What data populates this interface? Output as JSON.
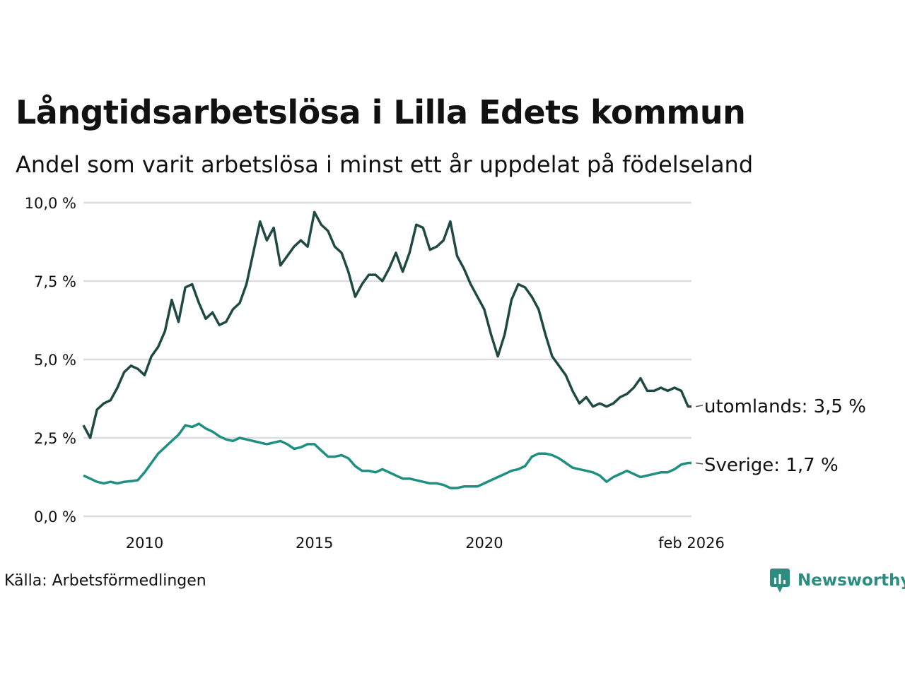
{
  "title": "Långtidsarbetslösa i Lilla Edets kommun",
  "subtitle": "Andel som varit arbetslösa i minst ett år uppdelat på födelseland",
  "source": "Källa: Arbetsförmedlingen",
  "brand": "Newsworthy",
  "chart_data": {
    "type": "line",
    "title": "Långtidsarbetslösa i Lilla Edets kommun",
    "subtitle": "Andel som varit arbetslösa i minst ett år uppdelat på födelseland",
    "ylim": [
      0,
      10
    ],
    "xlim": [
      2008.2,
      2026.1
    ],
    "y_ticks": [
      0,
      2.5,
      5,
      7.5,
      10
    ],
    "y_tick_labels": [
      "0,0 %",
      "2,5 %",
      "5,0 %",
      "7,5 %",
      "10,0 %"
    ],
    "x_ticks": [
      2010,
      2015,
      2020,
      2026.1
    ],
    "x_tick_labels": [
      "2010",
      "2015",
      "2020",
      "feb 2026"
    ],
    "grid": true,
    "series": [
      {
        "name": "utomlands",
        "end_label": "utomlands: 3,5 %",
        "color": "#1f4a43",
        "x": [
          2008.2,
          2008.4,
          2008.6,
          2008.8,
          2009.0,
          2009.2,
          2009.4,
          2009.6,
          2009.8,
          2010.0,
          2010.2,
          2010.4,
          2010.6,
          2010.8,
          2011.0,
          2011.2,
          2011.4,
          2011.6,
          2011.8,
          2012.0,
          2012.2,
          2012.4,
          2012.6,
          2012.8,
          2013.0,
          2013.2,
          2013.4,
          2013.6,
          2013.8,
          2014.0,
          2014.2,
          2014.4,
          2014.6,
          2014.8,
          2015.0,
          2015.2,
          2015.4,
          2015.6,
          2015.8,
          2016.0,
          2016.2,
          2016.4,
          2016.6,
          2016.8,
          2017.0,
          2017.2,
          2017.4,
          2017.6,
          2017.8,
          2018.0,
          2018.2,
          2018.4,
          2018.6,
          2018.8,
          2019.0,
          2019.2,
          2019.4,
          2019.6,
          2019.8,
          2020.0,
          2020.2,
          2020.4,
          2020.6,
          2020.8,
          2021.0,
          2021.2,
          2021.4,
          2021.6,
          2021.8,
          2022.0,
          2022.2,
          2022.4,
          2022.6,
          2022.8,
          2023.0,
          2023.2,
          2023.4,
          2023.6,
          2023.8,
          2024.0,
          2024.2,
          2024.4,
          2024.6,
          2024.8,
          2025.0,
          2025.2,
          2025.4,
          2025.6,
          2025.8,
          2026.0,
          2026.1
        ],
        "values": [
          2.9,
          2.5,
          3.4,
          3.6,
          3.7,
          4.1,
          4.6,
          4.8,
          4.7,
          4.5,
          5.1,
          5.4,
          5.9,
          6.9,
          6.2,
          7.3,
          7.4,
          6.8,
          6.3,
          6.5,
          6.1,
          6.2,
          6.6,
          6.8,
          7.4,
          8.4,
          9.4,
          8.8,
          9.2,
          8.0,
          8.3,
          8.6,
          8.8,
          8.6,
          9.7,
          9.3,
          9.1,
          8.6,
          8.4,
          7.8,
          7.0,
          7.4,
          7.7,
          7.7,
          7.5,
          7.9,
          8.4,
          7.8,
          8.4,
          9.3,
          9.2,
          8.5,
          8.6,
          8.8,
          9.4,
          8.3,
          7.9,
          7.4,
          7.0,
          6.6,
          5.8,
          5.1,
          5.8,
          6.9,
          7.4,
          7.3,
          7.0,
          6.6,
          5.8,
          5.1,
          4.8,
          4.5,
          4.0,
          3.6,
          3.8,
          3.5,
          3.6,
          3.5,
          3.6,
          3.8,
          3.9,
          4.1,
          4.4,
          4.0,
          4.0,
          4.1,
          4.0,
          4.1,
          4.0,
          3.5,
          3.5
        ]
      },
      {
        "name": "Sverige",
        "end_label": "Sverige: 1,7 %",
        "color": "#1e8f80",
        "x": [
          2008.2,
          2008.4,
          2008.6,
          2008.8,
          2009.0,
          2009.2,
          2009.4,
          2009.6,
          2009.8,
          2010.0,
          2010.2,
          2010.4,
          2010.6,
          2010.8,
          2011.0,
          2011.2,
          2011.4,
          2011.6,
          2011.8,
          2012.0,
          2012.2,
          2012.4,
          2012.6,
          2012.8,
          2013.0,
          2013.2,
          2013.4,
          2013.6,
          2013.8,
          2014.0,
          2014.2,
          2014.4,
          2014.6,
          2014.8,
          2015.0,
          2015.2,
          2015.4,
          2015.6,
          2015.8,
          2016.0,
          2016.2,
          2016.4,
          2016.6,
          2016.8,
          2017.0,
          2017.2,
          2017.4,
          2017.6,
          2017.8,
          2018.0,
          2018.2,
          2018.4,
          2018.6,
          2018.8,
          2019.0,
          2019.2,
          2019.4,
          2019.6,
          2019.8,
          2020.0,
          2020.2,
          2020.4,
          2020.6,
          2020.8,
          2021.0,
          2021.2,
          2021.4,
          2021.6,
          2021.8,
          2022.0,
          2022.2,
          2022.4,
          2022.6,
          2022.8,
          2023.0,
          2023.2,
          2023.4,
          2023.6,
          2023.8,
          2024.0,
          2024.2,
          2024.4,
          2024.6,
          2024.8,
          2025.0,
          2025.2,
          2025.4,
          2025.6,
          2025.8,
          2026.0,
          2026.1
        ],
        "values": [
          1.3,
          1.2,
          1.1,
          1.05,
          1.1,
          1.05,
          1.1,
          1.12,
          1.15,
          1.4,
          1.7,
          2.0,
          2.2,
          2.4,
          2.6,
          2.9,
          2.85,
          2.95,
          2.8,
          2.7,
          2.55,
          2.45,
          2.4,
          2.5,
          2.45,
          2.4,
          2.35,
          2.3,
          2.35,
          2.4,
          2.3,
          2.15,
          2.2,
          2.3,
          2.3,
          2.1,
          1.9,
          1.9,
          1.95,
          1.85,
          1.6,
          1.45,
          1.45,
          1.4,
          1.5,
          1.4,
          1.3,
          1.2,
          1.2,
          1.15,
          1.1,
          1.05,
          1.05,
          1.0,
          0.9,
          0.9,
          0.95,
          0.95,
          0.95,
          1.05,
          1.15,
          1.25,
          1.35,
          1.45,
          1.5,
          1.6,
          1.9,
          2.0,
          2.0,
          1.95,
          1.85,
          1.7,
          1.55,
          1.5,
          1.45,
          1.4,
          1.3,
          1.1,
          1.25,
          1.35,
          1.45,
          1.35,
          1.25,
          1.3,
          1.35,
          1.4,
          1.4,
          1.5,
          1.65,
          1.7,
          1.7
        ]
      }
    ]
  }
}
